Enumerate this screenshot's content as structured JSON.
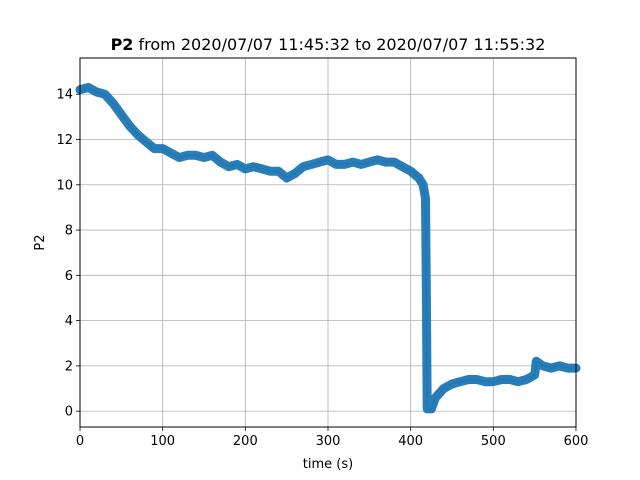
{
  "chart_data": {
    "type": "line",
    "title_bold": "P2",
    "title_rest": " from 2020/07/07 11:45:32 to 2020/07/07 11:55:32",
    "xlabel": "time (s)",
    "ylabel": "P2",
    "xlim": [
      0,
      600
    ],
    "ylim": [
      -0.7,
      15.6
    ],
    "xticks": [
      0,
      100,
      200,
      300,
      400,
      500,
      600
    ],
    "yticks": [
      0,
      2,
      4,
      6,
      8,
      10,
      12,
      14
    ],
    "grid": true,
    "line_color": "#1f77b4",
    "series": [
      {
        "x": [
          0,
          10,
          20,
          30,
          40,
          50,
          60,
          70,
          80,
          90,
          100,
          110,
          120,
          130,
          140,
          150,
          160,
          170,
          180,
          190,
          200,
          210,
          220,
          230,
          240,
          250,
          260,
          270,
          280,
          290,
          300,
          310,
          320,
          330,
          340,
          350,
          360,
          370,
          380,
          390,
          400,
          410,
          415,
          418,
          419,
          420,
          425,
          430,
          440,
          450,
          460,
          470,
          480,
          490,
          500,
          510,
          520,
          530,
          540,
          545,
          550,
          552,
          560,
          570,
          580,
          590,
          600
        ],
        "y": [
          14.2,
          14.3,
          14.1,
          14.0,
          13.6,
          13.1,
          12.6,
          12.2,
          11.9,
          11.6,
          11.6,
          11.4,
          11.2,
          11.3,
          11.3,
          11.2,
          11.3,
          11.0,
          10.8,
          10.9,
          10.7,
          10.8,
          10.7,
          10.6,
          10.6,
          10.3,
          10.5,
          10.8,
          10.9,
          11.0,
          11.1,
          10.9,
          10.9,
          11.0,
          10.9,
          11.0,
          11.1,
          11.0,
          11.0,
          10.8,
          10.6,
          10.3,
          10.0,
          9.4,
          5.0,
          0.1,
          0.1,
          0.6,
          1.0,
          1.2,
          1.3,
          1.4,
          1.4,
          1.3,
          1.3,
          1.4,
          1.4,
          1.3,
          1.4,
          1.5,
          1.6,
          2.2,
          2.0,
          1.9,
          2.0,
          1.9,
          1.9
        ]
      }
    ]
  }
}
